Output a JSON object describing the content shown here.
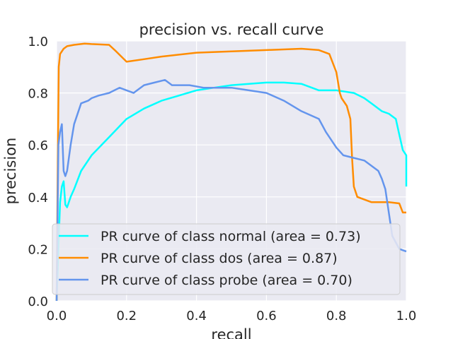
{
  "chart_data": {
    "type": "line",
    "title": "precision vs. recall curve",
    "xlabel": "recall",
    "ylabel": "precision",
    "xlim": [
      0.0,
      1.0
    ],
    "ylim": [
      0.0,
      1.0
    ],
    "xticks": [
      "0.0",
      "0.2",
      "0.4",
      "0.6",
      "0.8",
      "1.0"
    ],
    "yticks": [
      "0.0",
      "0.2",
      "0.4",
      "0.6",
      "0.8",
      "1.0"
    ],
    "grid": true,
    "legend_position": "lower-center",
    "background": "#eaeaf2",
    "series": [
      {
        "name": "PR curve of class normal (area = 0.73)",
        "color": "#00ffff",
        "x": [
          0.0,
          0.005,
          0.01,
          0.015,
          0.02,
          0.025,
          0.03,
          0.04,
          0.05,
          0.07,
          0.1,
          0.15,
          0.2,
          0.25,
          0.3,
          0.35,
          0.4,
          0.45,
          0.5,
          0.55,
          0.6,
          0.65,
          0.7,
          0.73,
          0.75,
          0.8,
          0.85,
          0.88,
          0.9,
          0.93,
          0.95,
          0.97,
          0.98,
          0.99,
          1.0,
          1.0
        ],
        "y": [
          0.0,
          0.2,
          0.38,
          0.44,
          0.46,
          0.37,
          0.36,
          0.4,
          0.43,
          0.5,
          0.56,
          0.63,
          0.7,
          0.74,
          0.77,
          0.79,
          0.81,
          0.82,
          0.83,
          0.835,
          0.84,
          0.84,
          0.835,
          0.82,
          0.81,
          0.81,
          0.8,
          0.78,
          0.76,
          0.73,
          0.72,
          0.7,
          0.64,
          0.58,
          0.56,
          0.44
        ]
      },
      {
        "name": "PR curve of class dos (area = 0.87)",
        "color": "#ff8c00",
        "x": [
          0.0,
          0.003,
          0.006,
          0.01,
          0.02,
          0.03,
          0.05,
          0.08,
          0.1,
          0.15,
          0.17,
          0.2,
          0.25,
          0.3,
          0.4,
          0.5,
          0.6,
          0.7,
          0.75,
          0.78,
          0.8,
          0.81,
          0.815,
          0.83,
          0.84,
          0.845,
          0.85,
          0.86,
          0.9,
          0.95,
          0.98,
          0.99,
          1.0
        ],
        "y": [
          0.0,
          0.5,
          0.9,
          0.95,
          0.97,
          0.98,
          0.985,
          0.99,
          0.988,
          0.985,
          0.96,
          0.92,
          0.93,
          0.94,
          0.955,
          0.96,
          0.965,
          0.97,
          0.965,
          0.95,
          0.88,
          0.8,
          0.78,
          0.75,
          0.7,
          0.55,
          0.44,
          0.4,
          0.38,
          0.38,
          0.375,
          0.34,
          0.34
        ]
      },
      {
        "name": "PR curve of class probe (area = 0.70)",
        "color": "#6495ed",
        "x": [
          0.0,
          0.005,
          0.01,
          0.015,
          0.02,
          0.025,
          0.03,
          0.04,
          0.05,
          0.07,
          0.09,
          0.1,
          0.12,
          0.15,
          0.18,
          0.2,
          0.22,
          0.25,
          0.28,
          0.31,
          0.33,
          0.38,
          0.42,
          0.46,
          0.5,
          0.55,
          0.6,
          0.65,
          0.7,
          0.75,
          0.77,
          0.8,
          0.82,
          0.85,
          0.88,
          0.9,
          0.92,
          0.93,
          0.94,
          0.96,
          0.98,
          1.0
        ],
        "y": [
          0.0,
          0.6,
          0.65,
          0.68,
          0.5,
          0.48,
          0.5,
          0.6,
          0.68,
          0.76,
          0.77,
          0.78,
          0.79,
          0.8,
          0.82,
          0.81,
          0.8,
          0.83,
          0.84,
          0.85,
          0.83,
          0.83,
          0.82,
          0.82,
          0.82,
          0.81,
          0.8,
          0.77,
          0.73,
          0.7,
          0.65,
          0.59,
          0.56,
          0.55,
          0.54,
          0.52,
          0.5,
          0.47,
          0.43,
          0.25,
          0.2,
          0.19
        ]
      }
    ]
  }
}
